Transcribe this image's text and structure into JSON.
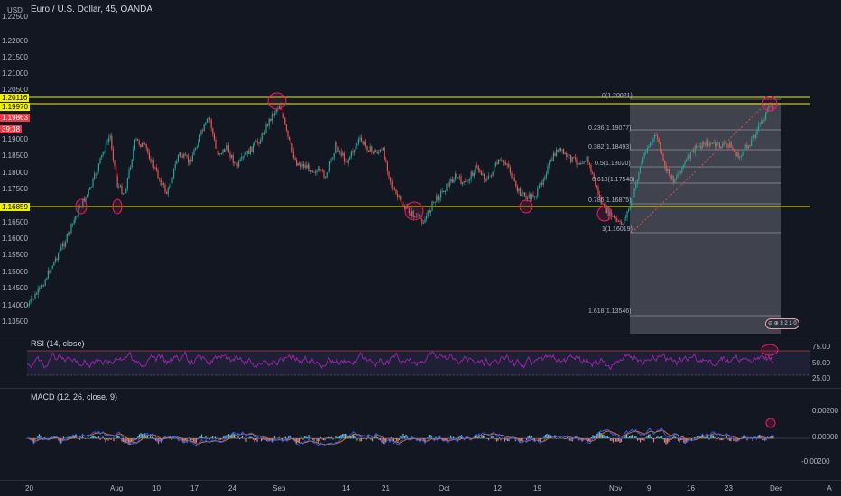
{
  "header": {
    "symbol_title": "Euro / U.S. Dollar, 45, OANDA",
    "price_scale_unit": "USD"
  },
  "price_axis": {
    "labels": [
      "1.22500",
      "1.22000",
      "1.21500",
      "1.21000",
      "1.20500",
      "1.19000",
      "1.18500",
      "1.18000",
      "1.17500",
      "1.17000",
      "1.16500",
      "1.16000",
      "1.15500",
      "1.15000",
      "1.14500",
      "1.14000",
      "1.13500"
    ],
    "tags": [
      {
        "text": "1.20116",
        "color": "#f0f000"
      },
      {
        "text": "1.19970",
        "color": "#f0f000"
      },
      {
        "text": "1.19863",
        "color": "#f23645"
      },
      {
        "text": "39:38",
        "color": "#f23645"
      },
      {
        "text": "1.16859",
        "color": "#f0f000"
      }
    ]
  },
  "fib_levels": [
    {
      "label": "0(1.20021)"
    },
    {
      "label": "0.236(1.19077)"
    },
    {
      "label": "0.382(1.18493)"
    },
    {
      "label": "0.5(1.18020)"
    },
    {
      "label": "0.618(1.17548)"
    },
    {
      "label": "0.786(1.16875)"
    },
    {
      "label": "1(1.16019)"
    },
    {
      "label": "1.618(1.13546)"
    }
  ],
  "rsi_pane": {
    "title": "RSI (14, close)",
    "levels": [
      "75.00",
      "50.00",
      "25.00"
    ]
  },
  "macd_pane": {
    "title": "MACD (12, 26, close, 9)",
    "levels": [
      "0.00200",
      "0.00000",
      "-0.00200"
    ]
  },
  "time_axis": {
    "labels": [
      "20",
      "Aug",
      "10",
      "17",
      "24",
      "Sep",
      "14",
      "21",
      "Oct",
      "12",
      "19",
      "Nov",
      "9",
      "16",
      "23",
      "Dec"
    ]
  },
  "controls": {
    "mini_toolbar": "⊖ ⊕ 3 2 1 0"
  },
  "corner_button": "A",
  "colors": {
    "background": "#131722",
    "up_candle": "#26a69a",
    "down_candle": "#ef5350",
    "horizontal_lines": "#f0f000",
    "rsi_line": "#9c27b0",
    "macd_line": "#2962ff",
    "signal_line": "#ff6d00",
    "highlight_circles": "#e91e63"
  }
}
